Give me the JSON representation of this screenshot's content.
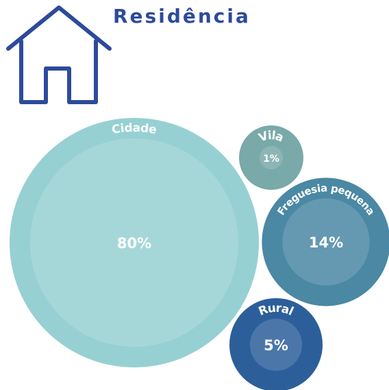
{
  "chart_data": {
    "type": "bubble",
    "title": "Residência",
    "categories": [
      "Cidade",
      "Vila",
      "Freguesia pequena",
      "Rural"
    ],
    "values": [
      80,
      1,
      14,
      5
    ],
    "value_labels": [
      "80%",
      "1%",
      "14%",
      "5%"
    ],
    "colors": [
      "#97d0d2",
      "#7aa9a9",
      "#4a88a4",
      "#2c5f9a"
    ]
  }
}
